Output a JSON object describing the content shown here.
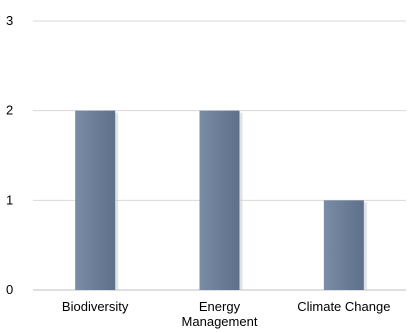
{
  "chart_data": {
    "type": "bar",
    "categories": [
      "Biodiversity",
      "Energy Management",
      "Climate Change"
    ],
    "category_label_lines": [
      [
        "Biodiversity"
      ],
      [
        "Energy",
        "Management"
      ],
      [
        "Climate Change"
      ]
    ],
    "values": [
      2,
      2,
      1
    ],
    "yticks": [
      0,
      1,
      2,
      3
    ],
    "ylim": [
      0,
      3
    ],
    "grid": true,
    "legend": "none",
    "bar_color": "#6d7f9a",
    "bar_shadow_color": "#c9ced6",
    "grid_color": "#d9d9d9",
    "axis_color": "#bfbfbf"
  }
}
